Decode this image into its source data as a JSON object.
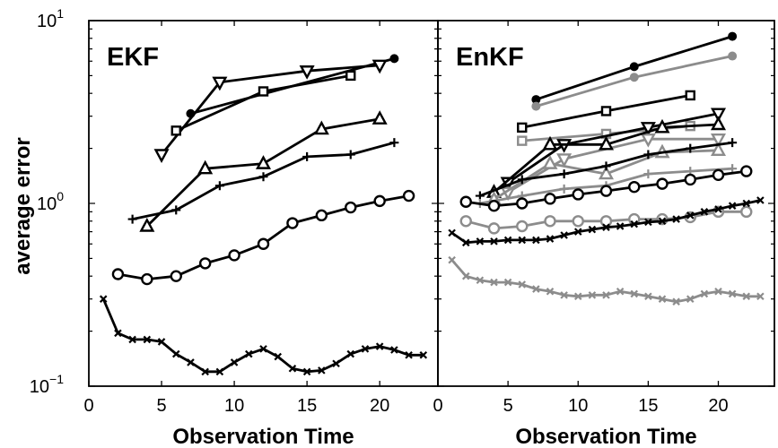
{
  "chart_data": [
    {
      "type": "line",
      "title": "EKF",
      "xlabel": "Observation Time",
      "ylabel": "average error",
      "xlim": [
        0,
        24
      ],
      "ylim": [
        0.1,
        10
      ],
      "yscale": "log",
      "xticks": [
        "0",
        "5",
        "10",
        "15",
        "20"
      ],
      "yticks": [
        {
          "base": "10",
          "exp": "1"
        },
        {
          "base": "10",
          "exp": "0"
        },
        {
          "base": "10",
          "exp": "−1"
        }
      ],
      "grid": false,
      "series": [
        {
          "marker": "circle-filled",
          "color": "#000000",
          "x": [
            7,
            21
          ],
          "y": [
            3.1,
            6.2
          ]
        },
        {
          "marker": "triangle-down",
          "color": "#000000",
          "x": [
            5,
            9,
            15,
            20
          ],
          "y": [
            1.85,
            4.6,
            5.3,
            5.7
          ]
        },
        {
          "marker": "square-open",
          "color": "#000000",
          "x": [
            6,
            12,
            18
          ],
          "y": [
            2.5,
            4.1,
            5.0
          ]
        },
        {
          "marker": "triangle-up",
          "color": "#000000",
          "x": [
            4,
            8,
            12,
            16,
            20
          ],
          "y": [
            0.75,
            1.55,
            1.65,
            2.55,
            2.9
          ]
        },
        {
          "marker": "plus",
          "color": "#000000",
          "x": [
            3,
            6,
            9,
            12,
            15,
            18,
            21
          ],
          "y": [
            0.82,
            0.92,
            1.25,
            1.4,
            1.8,
            1.85,
            2.15
          ]
        },
        {
          "marker": "circle-open",
          "color": "#000000",
          "x": [
            2,
            4,
            6,
            8,
            10,
            12,
            14,
            16,
            18,
            20,
            22
          ],
          "y": [
            0.41,
            0.385,
            0.4,
            0.47,
            0.52,
            0.6,
            0.78,
            0.86,
            0.95,
            1.03,
            1.1
          ]
        },
        {
          "marker": "x",
          "color": "#000000",
          "x": [
            1,
            2,
            3,
            4,
            5,
            6,
            7,
            8,
            9,
            10,
            11,
            12,
            13,
            14,
            15,
            16,
            17,
            18,
            19,
            20,
            21,
            22,
            23
          ],
          "y": [
            0.3,
            0.195,
            0.18,
            0.18,
            0.175,
            0.15,
            0.135,
            0.12,
            0.12,
            0.135,
            0.15,
            0.16,
            0.145,
            0.125,
            0.12,
            0.122,
            0.133,
            0.15,
            0.16,
            0.165,
            0.158,
            0.148,
            0.148
          ]
        }
      ]
    },
    {
      "type": "line",
      "title": "EnKF",
      "xlabel": "Observation Time",
      "ylabel": "",
      "xlim": [
        0,
        24
      ],
      "ylim": [
        0.1,
        10
      ],
      "yscale": "log",
      "xticks": [
        "0",
        "5",
        "10",
        "15",
        "20"
      ],
      "grid": false,
      "series": [
        {
          "marker": "circle-filled",
          "color": "#000000",
          "x": [
            7,
            14,
            21
          ],
          "y": [
            3.7,
            5.6,
            8.2
          ]
        },
        {
          "marker": "circle-filled",
          "color": "#8c8c8c",
          "x": [
            7,
            14,
            21
          ],
          "y": [
            3.4,
            4.9,
            6.4
          ]
        },
        {
          "marker": "square-open",
          "color": "#000000",
          "x": [
            6,
            12,
            18
          ],
          "y": [
            2.6,
            3.2,
            3.9
          ]
        },
        {
          "marker": "square-open",
          "color": "#8c8c8c",
          "x": [
            6,
            12,
            18
          ],
          "y": [
            2.2,
            2.4,
            2.65
          ]
        },
        {
          "marker": "triangle-down",
          "color": "#000000",
          "x": [
            5,
            9,
            15,
            20
          ],
          "y": [
            1.3,
            2.1,
            2.6,
            3.1
          ]
        },
        {
          "marker": "triangle-down",
          "color": "#8c8c8c",
          "x": [
            5,
            9,
            15,
            20
          ],
          "y": [
            1.15,
            1.75,
            2.25,
            2.25
          ]
        },
        {
          "marker": "triangle-up",
          "color": "#000000",
          "x": [
            4,
            8,
            12,
            16,
            20
          ],
          "y": [
            1.15,
            2.1,
            2.1,
            2.6,
            2.7
          ]
        },
        {
          "marker": "triangle-up",
          "color": "#8c8c8c",
          "x": [
            4,
            8,
            12,
            16,
            20
          ],
          "y": [
            1.05,
            1.65,
            1.45,
            1.9,
            1.95
          ]
        },
        {
          "marker": "plus",
          "color": "#000000",
          "x": [
            3,
            6,
            9,
            12,
            15,
            18,
            21
          ],
          "y": [
            1.1,
            1.35,
            1.45,
            1.6,
            1.85,
            2.0,
            2.15
          ]
        },
        {
          "marker": "plus",
          "color": "#8c8c8c",
          "x": [
            3,
            6,
            9,
            12,
            15,
            18,
            21
          ],
          "y": [
            1.0,
            1.1,
            1.2,
            1.25,
            1.45,
            1.5,
            1.55
          ]
        },
        {
          "marker": "circle-open",
          "color": "#000000",
          "x": [
            2,
            4,
            6,
            8,
            10,
            12,
            14,
            16,
            18,
            20,
            22
          ],
          "y": [
            1.02,
            0.97,
            1.0,
            1.06,
            1.12,
            1.17,
            1.23,
            1.28,
            1.35,
            1.43,
            1.5
          ]
        },
        {
          "marker": "circle-open",
          "color": "#8c8c8c",
          "x": [
            2,
            4,
            6,
            8,
            10,
            12,
            14,
            16,
            18,
            20,
            22
          ],
          "y": [
            0.8,
            0.73,
            0.75,
            0.8,
            0.8,
            0.8,
            0.82,
            0.82,
            0.84,
            0.9,
            0.9
          ]
        },
        {
          "marker": "x",
          "color": "#000000",
          "x": [
            1,
            2,
            3,
            4,
            5,
            6,
            7,
            8,
            9,
            10,
            11,
            12,
            13,
            14,
            15,
            16,
            17,
            18,
            19,
            20,
            21,
            22,
            23
          ],
          "y": [
            0.69,
            0.61,
            0.62,
            0.62,
            0.63,
            0.63,
            0.63,
            0.64,
            0.67,
            0.7,
            0.72,
            0.74,
            0.75,
            0.77,
            0.79,
            0.8,
            0.82,
            0.86,
            0.9,
            0.93,
            0.97,
            1.0,
            1.04
          ]
        },
        {
          "marker": "x",
          "color": "#8c8c8c",
          "x": [
            1,
            2,
            3,
            4,
            5,
            6,
            7,
            8,
            9,
            10,
            11,
            12,
            13,
            14,
            15,
            16,
            17,
            18,
            19,
            20,
            21,
            22,
            23
          ],
          "y": [
            0.49,
            0.4,
            0.38,
            0.37,
            0.37,
            0.36,
            0.34,
            0.33,
            0.315,
            0.31,
            0.315,
            0.315,
            0.33,
            0.32,
            0.31,
            0.3,
            0.29,
            0.3,
            0.32,
            0.33,
            0.32,
            0.31,
            0.31
          ]
        }
      ]
    }
  ]
}
